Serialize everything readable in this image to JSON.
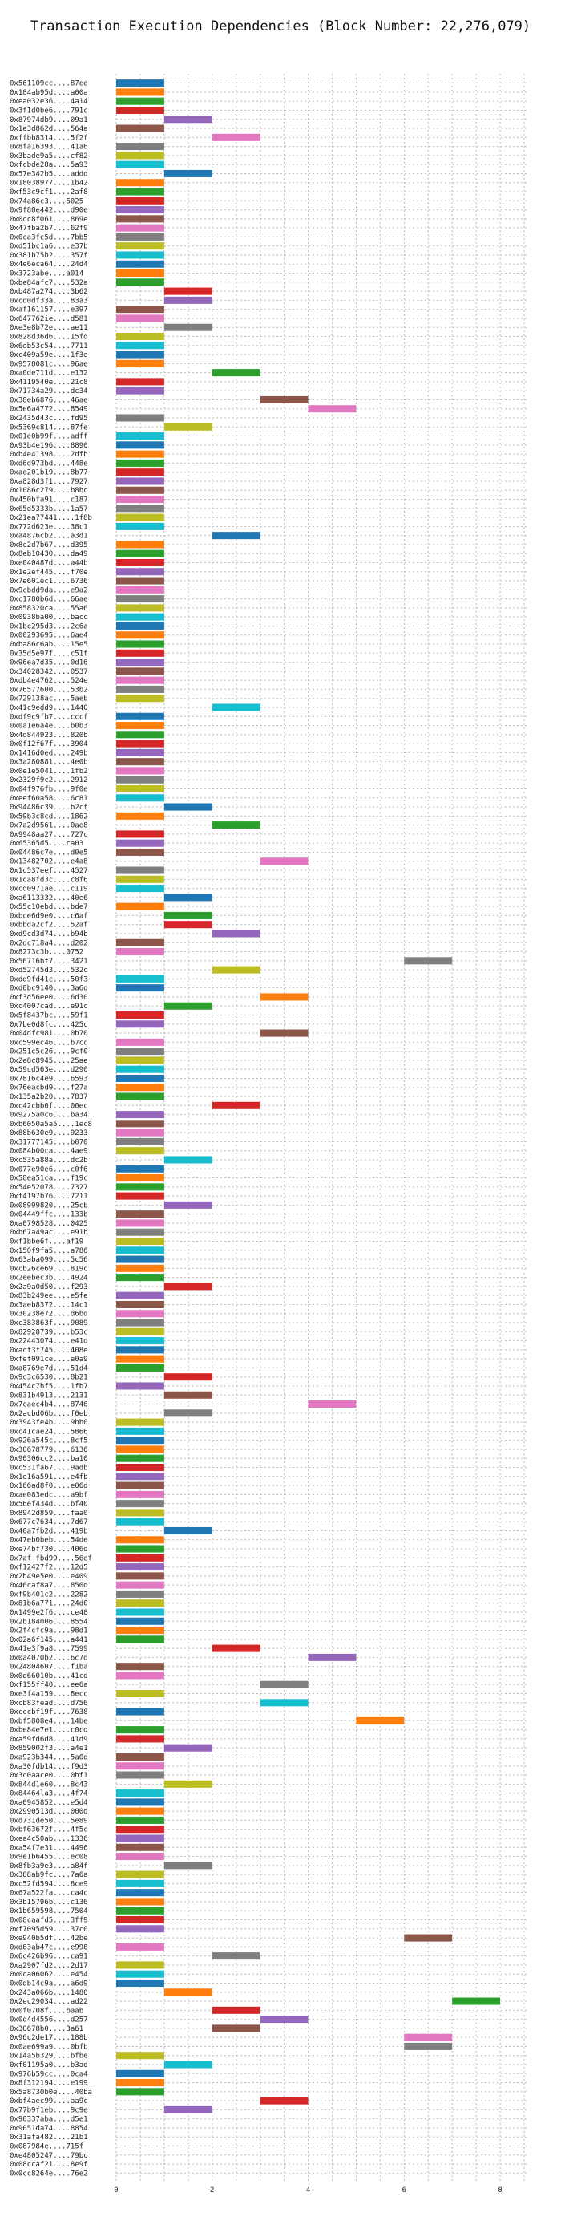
{
  "chart_data": {
    "type": "bar",
    "orientation": "horizontal-gantt",
    "title": "Transaction Execution Dependencies (Block Number: 22,276,079)",
    "xlabel": "",
    "ylabel": "",
    "xlim": [
      0,
      8.6
    ],
    "xticks": [
      0,
      2,
      4,
      6,
      8
    ],
    "grid": true,
    "bar_colors": [
      "#1f77b4",
      "#ff7f0e",
      "#2ca02c",
      "#d62728",
      "#9467bd",
      "#8c564b",
      "#e377c2",
      "#7f7f7f",
      "#bcbd22",
      "#17becf"
    ],
    "labels": [
      "0x561109cc....87ee",
      "0x184ab95d....a00a",
      "0xea032e36....4a14",
      "0x3f1d0be6....791c",
      "0x87974db9....09a1",
      "0x1e3d862d....564a",
      "0xffbb8314....5f2f",
      "0x8fa16393....41a6",
      "0x3bade9a5....cf82",
      "0xfcbde28a....5a93",
      "0x57e342b5....addd",
      "0x18038977....1b42",
      "0xf53c9cf1....2af8",
      "0x74a86c3....5025",
      "0x9f88e442....d90e",
      "0x0cc8f061....869e",
      "0x47fba2b7....62f9",
      "0x0ca3fc5d....7bb5",
      "0xd51bc1a6....e37b",
      "0x381b75b2....357f",
      "0x4e6eca64....24d4",
      "0x3723abe....a014",
      "0xbe84afc7....532a",
      "0xb487a274....3b62",
      "0xcd0df33a....83a3",
      "0xaf161157....e397",
      "0x647762ie....d581",
      "0xe3e8b72e....ae11",
      "0x828d36d6....15fd",
      "0x6eb53c54....7711",
      "0xc409a59e....1f3e",
      "0x9578081c....96ae",
      "0xa0de711d....e132",
      "0x4119540e....21c8",
      "0x71734a29....dc34",
      "0x38eb6876....46ae",
      "0x5e6a4772....8549",
      "0x2435d43c....fd95",
      "0x5369c814....87fe",
      "0x01e0b99f....adff",
      "0x93b4e196....8890",
      "0xb4e41398....2dfb",
      "0xd6d973bd....448e",
      "0xae201b19....8b77",
      "0xa828d3f1....7927",
      "0x1086c279....b8bc",
      "0x450bfa91....c187",
      "0x65d5333b....1a57",
      "0x21ea77441....1f8b",
      "0x772d623e....38c1",
      "0xa4876cb2....a3d1",
      "0x8c2d7b67....d395",
      "0x8eb10430....da49",
      "0xe040487d....a44b",
      "0x1e2ef445....f70e",
      "0x7e601ec1....6736",
      "0x9cbdd9da....e9a2",
      "0xc1780b6d....66ae",
      "0x858320ca....55a6",
      "0x0938ba00....bacc",
      "0x1bc295d3....2c6a",
      "0x00293695....6ae4",
      "0xba86c6ab....15e5",
      "0x35d5e97f....c51f",
      "0x96ea7d35....0d16",
      "0x34028342....0537",
      "0xdb4e4762....524e",
      "0x76577600....53b2",
      "0x729138ac....5aeb",
      "0x41c9edd9....1440",
      "0xdf9c9fb7....cccf",
      "0x0a1e6a4e....b0b3",
      "0x4d844923....820b",
      "0x0f12f67f....3904",
      "0x1416d0ed....249b",
      "0x3a280881....4e0b",
      "0x0e1e5041....1fb2",
      "0x2329f9c2....2912",
      "0x04f976fb....9f0e",
      "0xeef60a58....6c81",
      "0x94486c39....b2cf",
      "0x59b3c8cd....1862",
      "0x7a2d9561....0ae8",
      "0x9948aa27....727c",
      "0x65365d5....ca03",
      "0x04486c7e....d0e5",
      "0x13482702....e4a8",
      "0x1c537eef....4527",
      "0x1ca8fd3c....c8f6",
      "0xcd0971ae....c119",
      "0xa6113332....40e6",
      "0x55c10ebd....bde7",
      "0xbce6d9e0....c6af",
      "0xbbda2cf2....52af",
      "0xd9cd3d74....b94b",
      "0x2dc718a4....d202",
      "0x8273c3b....0752",
      "0x56716bf7....3421",
      "0xd52745d3....532c",
      "0xdd9fd41c....50f3",
      "0xd0bc9140....3a6d",
      "0xf3d56ee0....6d30",
      "0xc4007cad....e91c",
      "0x5f8437bc....59f1",
      "0x7be0d8fc....425c",
      "0x04dfc981....0b70",
      "0xc599ec46....b7cc",
      "0x251c5c26....9cf0",
      "0x2e8c8945....25ae",
      "0x59cd563e....d290",
      "0x7816c4e9....6593",
      "0x76eacbd9....f27a",
      "0x135a2b20....7837",
      "0xc42cbb0f....00ec",
      "0x9275a0c6....ba34",
      "0xb6050a5a5....1ec8",
      "0x88b630e9....9233",
      "0x31777145....b070",
      "0x084b00ca....4ae9",
      "0xc535a88a....dc2b",
      "0x077e90e6....c0f6",
      "0x58ea51ca....f19c",
      "0x54e52078....7327",
      "0xf4197b76....7211",
      "0x08999820....25cb",
      "0x04449ffc....133b",
      "0xa0798528....0425",
      "0xb67a49ac....e91b",
      "0xf1bbe6f....af19",
      "0x150f9fa5....a786",
      "0x63aba099....5c56",
      "0xcb26ce69....819c",
      "0x2eebec3b....4924",
      "0x2a9a0d50....f293",
      "0x83b249ee....e5fe",
      "0x3aeb8372....14c1",
      "0x30238e72....d6bd",
      "0xc383863f....9089",
      "0x82928739....b53c",
      "0x22443074....e41d",
      "0xacf3f745....408e",
      "0xfef091ce....e0a9",
      "0xa8769e7d....51d4",
      "0x9c3c6530....8b21",
      "0x454c7bf5....1fb7",
      "0x831b4913....2131",
      "0x7caec4b4....8746",
      "0x2acbd06b....f0eb",
      "0x3943fe4b....9bb0",
      "0xc41cae24....5866",
      "0x926a545c....8cf5",
      "0x30678779....6136",
      "0x90306cc2....ba10",
      "0xc531fa67....9adb",
      "0x1e16a591....e4fb",
      "0x166ad8f0....e06d",
      "0xae083edc....a9bf",
      "0x56ef434d....bf40",
      "0x8942d859....faa0",
      "0x677c7634....7d67",
      "0x40a7fb2d....419b",
      "0x47eb0beb....54de",
      "0xe74bf730....406d",
      "0x7af fbd99....56ef",
      "0xf12427f2....12d5",
      "0x2b49e5e0....e409",
      "0x46caf8a7....850d",
      "0xf9b401c2....2282",
      "0x81b6a771....24d0",
      "0x1499e2f6....ce48",
      "0x2b184006....8554",
      "0x2f4cfc9a....98d1",
      "0x02a6f145....a441",
      "0x41e3f9a8....7599",
      "0x0a4070b2....6c7d",
      "0x24804607....f1ba",
      "0x0d66010b....41cd",
      "0xf155ff40....ee6a",
      "0xe3f4a159....8ecc",
      "0xcb83fead....d756",
      "0xcccbf19f....7638",
      "0xbf5808e4....14be",
      "0xbe84e7e1....c0cd",
      "0xa59fd6d8....41d9",
      "0x859002f3....a4e1",
      "0xa923b344....5a0d",
      "0xa30fdb14....f9d3",
      "0x3c0aace0....0bf1",
      "0x844d1e60....8c43",
      "0x84464la3....4f74",
      "0xa0945852....e5d4",
      "0x2990513d....000d",
      "0xd731de50....5e89",
      "0xbf63672f....4f5c",
      "0xea4c50ab....1336",
      "0xa54f7e31....4496",
      "0x9e1b6455....ec08",
      "0x8fb3a9e3....a84f",
      "0x388ab9fc....7a6a",
      "0xc52fd594....8ce9",
      "0x67a522fa....ca4c",
      "0x3b15796b....c136",
      "0x1b659598....7504",
      "0x08caafd5....3ff9",
      "0xf7095d59....37c0",
      "0xe940b5df....42be",
      "0xd83ab47c....e998",
      "0x6c426b96....ca91",
      "0xa2907fd2....2d17",
      "0x0ca06062....e454",
      "0x0db14c9a....a6d9",
      "0x243a066b....1480",
      "0x2ec29034....ad22",
      "0x0f0708f....baab",
      "0x0d4d4556....d257",
      "0x30678b0....3a61",
      "0x96c2de17....188b",
      "0x0ae699a9....0bfb",
      "0x14a5b329....bfbe",
      "0xf01195a0....b3ad",
      "0x976b59cc....0ca4",
      "0x8f312194....e199",
      "0x5a8730b0e....40ba",
      "0xbf4aec99....aa9c",
      "0x77b9f1eb....9c9e",
      "0x90337aba....d5e1",
      "0x9051da74....8854",
      "0x31afa482....21b1",
      "0x087984e....715f",
      "0xe4805247....79bc",
      "0x08ccaf21....8e9f",
      "0x0cc8264e....76e2"
    ],
    "starts": [
      0,
      0,
      0,
      0,
      1,
      0,
      2,
      0,
      0,
      0,
      1,
      0,
      0,
      0,
      0,
      0,
      0,
      0,
      0,
      0,
      0,
      0,
      0,
      1,
      1,
      0,
      0,
      1,
      0,
      0,
      0,
      0,
      2,
      0,
      0,
      3,
      4,
      0,
      1,
      0,
      0,
      0,
      0,
      0,
      0,
      0,
      0,
      0,
      0,
      0,
      2,
      0,
      0,
      0,
      0,
      0,
      0,
      0,
      0,
      0,
      0,
      0,
      0,
      0,
      0,
      0,
      0,
      0,
      0,
      2,
      0,
      0,
      0,
      0,
      0,
      0,
      0,
      0,
      0,
      0,
      1,
      0,
      2,
      0,
      0,
      0,
      3,
      0,
      0,
      0,
      1,
      0,
      1,
      1,
      2,
      0,
      0,
      6,
      2,
      0,
      0,
      3,
      1,
      0,
      0,
      3,
      0,
      0,
      0,
      0,
      0,
      0,
      0,
      2,
      0,
      0,
      0,
      0,
      0,
      1,
      0,
      0,
      0,
      0,
      1,
      0,
      0,
      0,
      0,
      0,
      0,
      0,
      0,
      1,
      0,
      0,
      0,
      0,
      0,
      0,
      0,
      0,
      0,
      1,
      0,
      1,
      4,
      1,
      0,
      0,
      0,
      0,
      0,
      0,
      0,
      0,
      0,
      0,
      0,
      0,
      1,
      0,
      0,
      0,
      0,
      0,
      0,
      0,
      0,
      0,
      0,
      0,
      0,
      2,
      4,
      0,
      0,
      3,
      0,
      3,
      0,
      5,
      0,
      0,
      1,
      0,
      0,
      0,
      1,
      0,
      0,
      0,
      0,
      0,
      0,
      0,
      0,
      1,
      0,
      0,
      0,
      0,
      0,
      0,
      0,
      6,
      0,
      2,
      0,
      0,
      0,
      1,
      7,
      2,
      3,
      2,
      6,
      6,
      0,
      1,
      0,
      0,
      0,
      3,
      1,
      1
    ],
    "durations": [
      1,
      1,
      1,
      1,
      1,
      1,
      1,
      1,
      1,
      1,
      1,
      1,
      1,
      1,
      1,
      1,
      1,
      1,
      1,
      1,
      1,
      1,
      1,
      1,
      1,
      1,
      1,
      1,
      1,
      1,
      1,
      1,
      1,
      1,
      1,
      1,
      1,
      1,
      1,
      1,
      1,
      1,
      1,
      1,
      1,
      1,
      1,
      1,
      1,
      1,
      1,
      1,
      1,
      1,
      1,
      1,
      1,
      1,
      1,
      1,
      1,
      1,
      1,
      1,
      1,
      1,
      1,
      1,
      1,
      1,
      1,
      1,
      1,
      1,
      1,
      1,
      1,
      1,
      1,
      1,
      1,
      1,
      1,
      1,
      1,
      1,
      1,
      1,
      1,
      1,
      1,
      1,
      1,
      1,
      1,
      1,
      1,
      1,
      1,
      1,
      1,
      1,
      1,
      1,
      1,
      1,
      1,
      1,
      1,
      1,
      1,
      1,
      1,
      1,
      1,
      1,
      1,
      1,
      1,
      1,
      1,
      1,
      1,
      1,
      1,
      1,
      1,
      1,
      1,
      1,
      1,
      1,
      1,
      1,
      1,
      1,
      1,
      1,
      1,
      1,
      1,
      1,
      1,
      1,
      1,
      1,
      1,
      1,
      1,
      1,
      1,
      1,
      1,
      1,
      1,
      1,
      1,
      1,
      1,
      1,
      1,
      1,
      1,
      1,
      1,
      1,
      1,
      1,
      1,
      1,
      1,
      1,
      1,
      1,
      1,
      1,
      1,
      1,
      1,
      1,
      1,
      1,
      1,
      1,
      1,
      1,
      1,
      1,
      1,
      1,
      1,
      1,
      1,
      1,
      1,
      1,
      1,
      1,
      1,
      1,
      1,
      1,
      1,
      1,
      1,
      1,
      1,
      1,
      1,
      1,
      1,
      1,
      1,
      1,
      1,
      1,
      1,
      1,
      1,
      1,
      1,
      1,
      1,
      1,
      1
    ]
  }
}
